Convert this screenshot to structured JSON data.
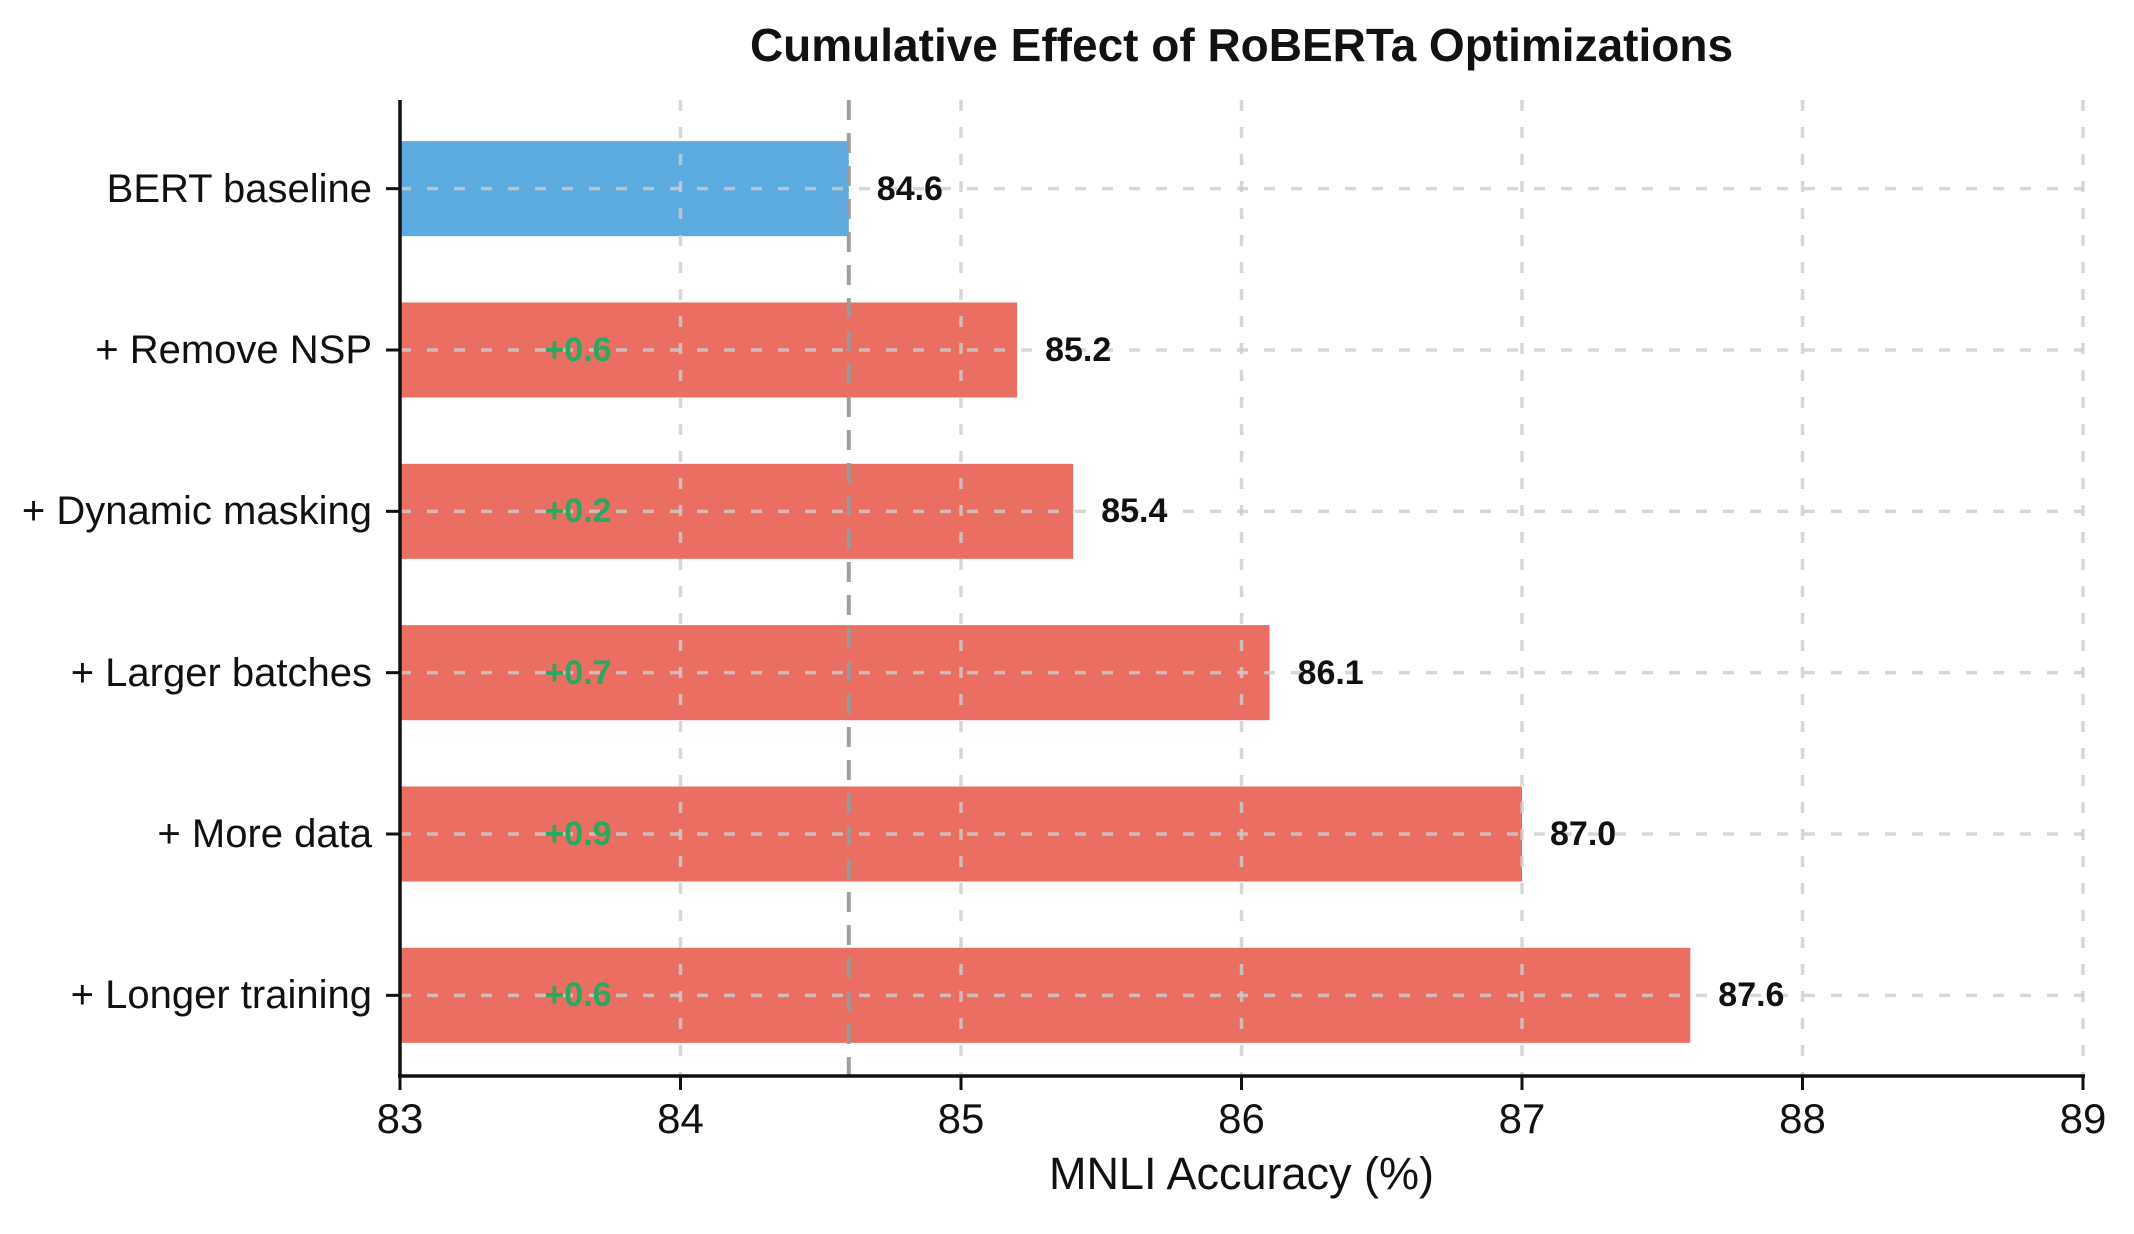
{
  "chart_data": {
    "type": "bar",
    "orientation": "horizontal",
    "title": "Cumulative Effect of RoBERTa Optimizations",
    "xlabel": "MNLI Accuracy (%)",
    "categories": [
      "BERT baseline",
      "+ Remove NSP",
      "+ Dynamic masking",
      "+ Larger batches",
      "+ More data",
      "+ Longer training"
    ],
    "values": [
      84.6,
      85.2,
      85.4,
      86.1,
      87.0,
      87.6
    ],
    "value_labels": [
      "84.6",
      "85.2",
      "85.4",
      "86.1",
      "87.0",
      "87.6"
    ],
    "deltas": [
      "",
      "+0.6",
      "+0.2",
      "+0.7",
      "+0.9",
      "+0.6"
    ],
    "xlim": [
      83,
      89
    ],
    "xticks": [
      83,
      84,
      85,
      86,
      87,
      88,
      89
    ],
    "xtick_labels": [
      "83",
      "84",
      "85",
      "86",
      "87",
      "88",
      "89"
    ],
    "baseline_value": 84.6,
    "grid": {
      "vertical": true,
      "horizontal": true,
      "style": "dashed"
    },
    "legend": null,
    "colors": {
      "baseline_bar": "#5babe0",
      "improvement_bar": "#ea6e61",
      "delta_text": "#27a960",
      "text": "#111111",
      "grid_line": "#cdcdcd",
      "baseline_line": "#9a9a9a",
      "spine": "#111111"
    }
  }
}
